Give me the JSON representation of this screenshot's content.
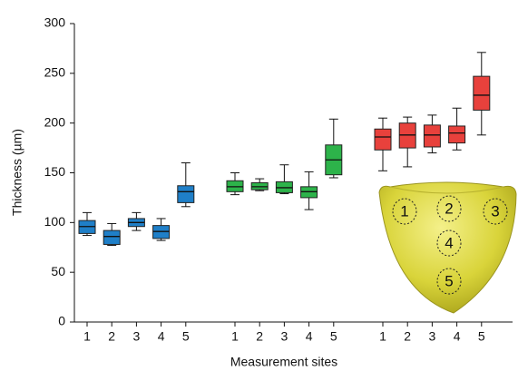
{
  "chart_data": {
    "type": "box",
    "y_label": "Thickness (µm)",
    "x_label": "Measurement sites",
    "categories": [
      "1",
      "2",
      "3",
      "4",
      "5",
      "1",
      "2",
      "3",
      "4",
      "5",
      "1",
      "2",
      "3",
      "4",
      "5"
    ],
    "ylim": [
      0,
      300
    ],
    "yticks": [
      0,
      50,
      100,
      150,
      200,
      250,
      300
    ],
    "series": [
      {
        "color": "#1f7fc8",
        "values": [
          [
            87,
            89,
            96,
            102,
            110
          ],
          [
            77,
            78,
            86,
            92,
            99
          ],
          [
            92,
            96,
            100,
            104,
            110
          ],
          [
            82,
            84,
            91,
            97,
            104
          ],
          [
            116,
            120,
            131,
            137,
            160
          ]
        ]
      },
      {
        "color": "#2db34a",
        "values": [
          [
            128,
            131,
            136,
            142,
            150
          ],
          [
            132,
            133,
            136,
            140,
            144
          ],
          [
            129,
            130,
            135,
            141,
            158
          ],
          [
            113,
            125,
            131,
            136,
            151
          ],
          [
            145,
            148,
            163,
            178,
            204
          ]
        ]
      },
      {
        "color": "#e8413c",
        "values": [
          [
            152,
            173,
            186,
            194,
            205
          ],
          [
            156,
            175,
            188,
            200,
            206
          ],
          [
            170,
            176,
            188,
            198,
            208
          ],
          [
            173,
            180,
            190,
            197,
            215
          ],
          [
            188,
            213,
            228,
            247,
            271
          ]
        ]
      }
    ]
  },
  "inset": {
    "labels": [
      "1",
      "2",
      "3",
      "4",
      "5"
    ]
  }
}
